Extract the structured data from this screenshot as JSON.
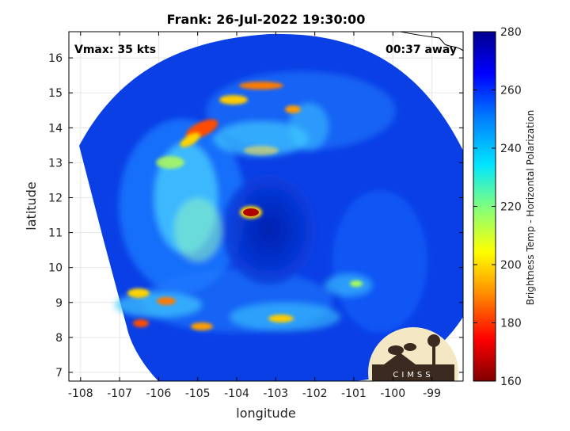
{
  "chart_data": {
    "type": "heatmap",
    "title": "Frank: 26-Jul-2022 19:30:00",
    "xlabel": "longitude",
    "ylabel": "latitude",
    "xlim": [
      -108.3,
      -98.2
    ],
    "ylim": [
      6.75,
      16.75
    ],
    "x_ticks": [
      -108,
      -107,
      -106,
      -105,
      -104,
      -103,
      -102,
      -101,
      -100,
      -99
    ],
    "y_ticks": [
      7,
      8,
      9,
      10,
      11,
      12,
      13,
      14,
      15,
      16
    ],
    "grid": true,
    "annotations": {
      "vmax": "Vmax: 35 kts",
      "time_offset": "00:37 away"
    },
    "storm_center": {
      "lon": -103.6,
      "lat": 11.55
    },
    "colorbar": {
      "label": "Brightness Temp - Horizontal Polarization",
      "range": [
        160,
        280
      ],
      "ticks": [
        160,
        180,
        200,
        220,
        240,
        260,
        280
      ],
      "colormap": [
        "#7f0000",
        "#ff0000",
        "#ff8c00",
        "#ffff00",
        "#7fff7f",
        "#00e5ff",
        "#0080ff",
        "#0000ff",
        "#00008f"
      ]
    },
    "features": [
      {
        "type": "cold-cloud-band",
        "lon": -105.0,
        "lat": 14.0,
        "value": 180
      },
      {
        "type": "cold-cloud-band",
        "lon": -104.5,
        "lat": 14.5,
        "value": 200
      },
      {
        "type": "cold-cloud-band",
        "lon": -103.8,
        "lat": 15.1,
        "value": 195
      },
      {
        "type": "cold-cloud-band",
        "lon": -102.5,
        "lat": 14.5,
        "value": 200
      },
      {
        "type": "core",
        "lon": -103.6,
        "lat": 11.55,
        "value": 165
      },
      {
        "type": "rain-band",
        "lon": -105.6,
        "lat": 12.6,
        "value": 225
      },
      {
        "type": "rain-band",
        "lon": -105.5,
        "lat": 11.2,
        "value": 230
      },
      {
        "type": "cold-cloud-band",
        "lon": -106.6,
        "lat": 9.0,
        "value": 185
      },
      {
        "type": "cold-cloud-band",
        "lon": -105.0,
        "lat": 8.3,
        "value": 190
      },
      {
        "type": "rain-band",
        "lon": -103.0,
        "lat": 8.5,
        "value": 210
      }
    ]
  },
  "logo": {
    "text": "CIMSS"
  }
}
